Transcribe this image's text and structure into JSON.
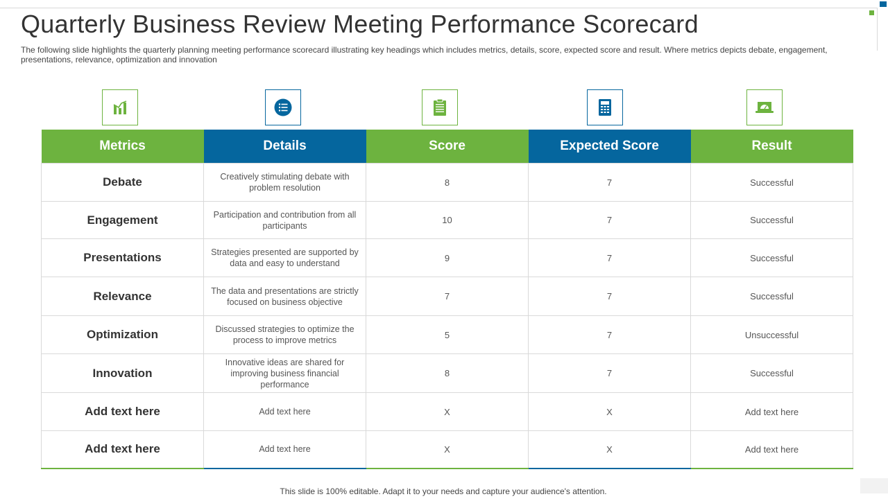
{
  "slide": {
    "title": "Quarterly Business Review Meeting Performance Scorecard",
    "subtitle": "The following slide highlights the quarterly planning meeting performance scorecard illustrating key headings which includes metrics, details, score, expected score and result. Where metrics depicts debate, engagement, presentations, relevance, optimization and innovation",
    "footer": "This slide is 100% editable. Adapt it to your needs and capture your audience's attention."
  },
  "colors": {
    "green": "#6db33f",
    "blue": "#05669e",
    "border": "#d9d9d9",
    "text": "#333333"
  },
  "header_icons": [
    "bar-chart-icon",
    "list-icon",
    "clipboard-icon",
    "calculator-icon",
    "laptop-gauge-icon"
  ],
  "table": {
    "headers": [
      "Metrics",
      "Details",
      "Score",
      "Expected Score",
      "Result"
    ],
    "rows": [
      {
        "metric": "Debate",
        "details": "Creatively  stimulating debate with problem  resolution",
        "score": "8",
        "expected": "7",
        "result": "Successful"
      },
      {
        "metric": "Engagement",
        "details": "Participation  and contribution from all participants",
        "score": "10",
        "expected": "7",
        "result": "Successful"
      },
      {
        "metric": "Presentations",
        "details": "Strategies presented  are supported by data and easy to understand",
        "score": "9",
        "expected": "7",
        "result": "Successful"
      },
      {
        "metric": "Relevance",
        "details": "The data and presentations are strictly focused on business objective",
        "score": "7",
        "expected": "7",
        "result": "Successful"
      },
      {
        "metric": "Optimization",
        "details": "Discussed strategies to optimize the process to improve  metrics",
        "score": "5",
        "expected": "7",
        "result": "Unsuccessful"
      },
      {
        "metric": "Innovation",
        "details": "Innovative  ideas are shared for improving  business financial performance",
        "score": "8",
        "expected": "7",
        "result": "Successful"
      },
      {
        "metric": "Add text here",
        "details": "Add text here",
        "score": "X",
        "expected": "X",
        "result": "Add text here"
      },
      {
        "metric": "Add text here",
        "details": "Add text here",
        "score": "X",
        "expected": "X",
        "result": "Add text here"
      }
    ]
  }
}
